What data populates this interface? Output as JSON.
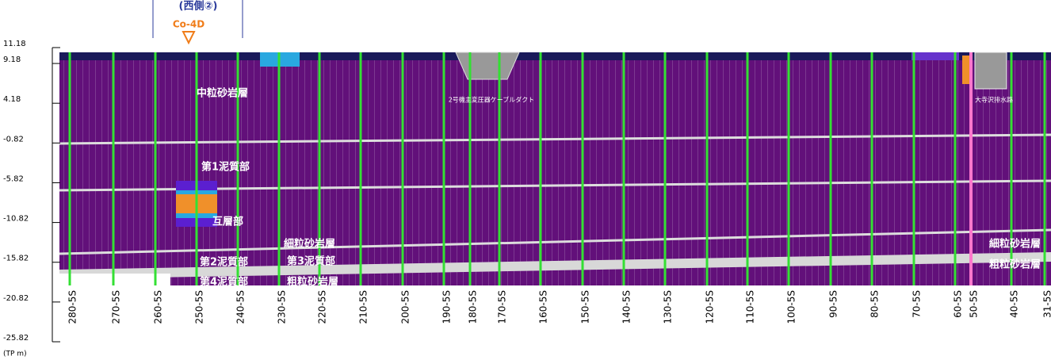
{
  "header": {
    "side": "(西側②)",
    "borehole": "Co-4D"
  },
  "axis": {
    "ticks": [
      11.18,
      9.18,
      4.18,
      -0.82,
      -5.82,
      -10.82,
      -15.82,
      -20.82,
      -25.82
    ],
    "unit": "(TP m)"
  },
  "layers": {
    "medium_sandstone": "中粒砂岩層",
    "mud1": "第1泥質部",
    "alternation": "互層部",
    "fine_sandstone": "細粒砂岩層",
    "mud2": "第2泥質部",
    "mud3": "第3泥質部",
    "mud4": "第4泥質部",
    "coarse_sandstone": "粗粒砂岩層",
    "fine_sandstone_right": "細粒砂岩層",
    "coarse_sandstone_right": "粗粒砂岩層"
  },
  "structures": {
    "duct": "2号機主変圧器ケーブルダクト",
    "drain": "大寺沢排水路"
  },
  "sections": [
    "280-5S",
    "270-5S",
    "260-5S",
    "250-5S",
    "240-5S",
    "230-5S",
    "220-5S",
    "210-5S",
    "200-5S",
    "190-5S",
    "180-5S",
    "170-5S",
    "160-5S",
    "150-5S",
    "140-5S",
    "130-5S",
    "120-5S",
    "110-5S",
    "100-5S",
    "90-5S",
    "80-5S",
    "70-5S",
    "60-5S",
    "50-5S",
    "40-5S",
    "31-5S"
  ]
}
